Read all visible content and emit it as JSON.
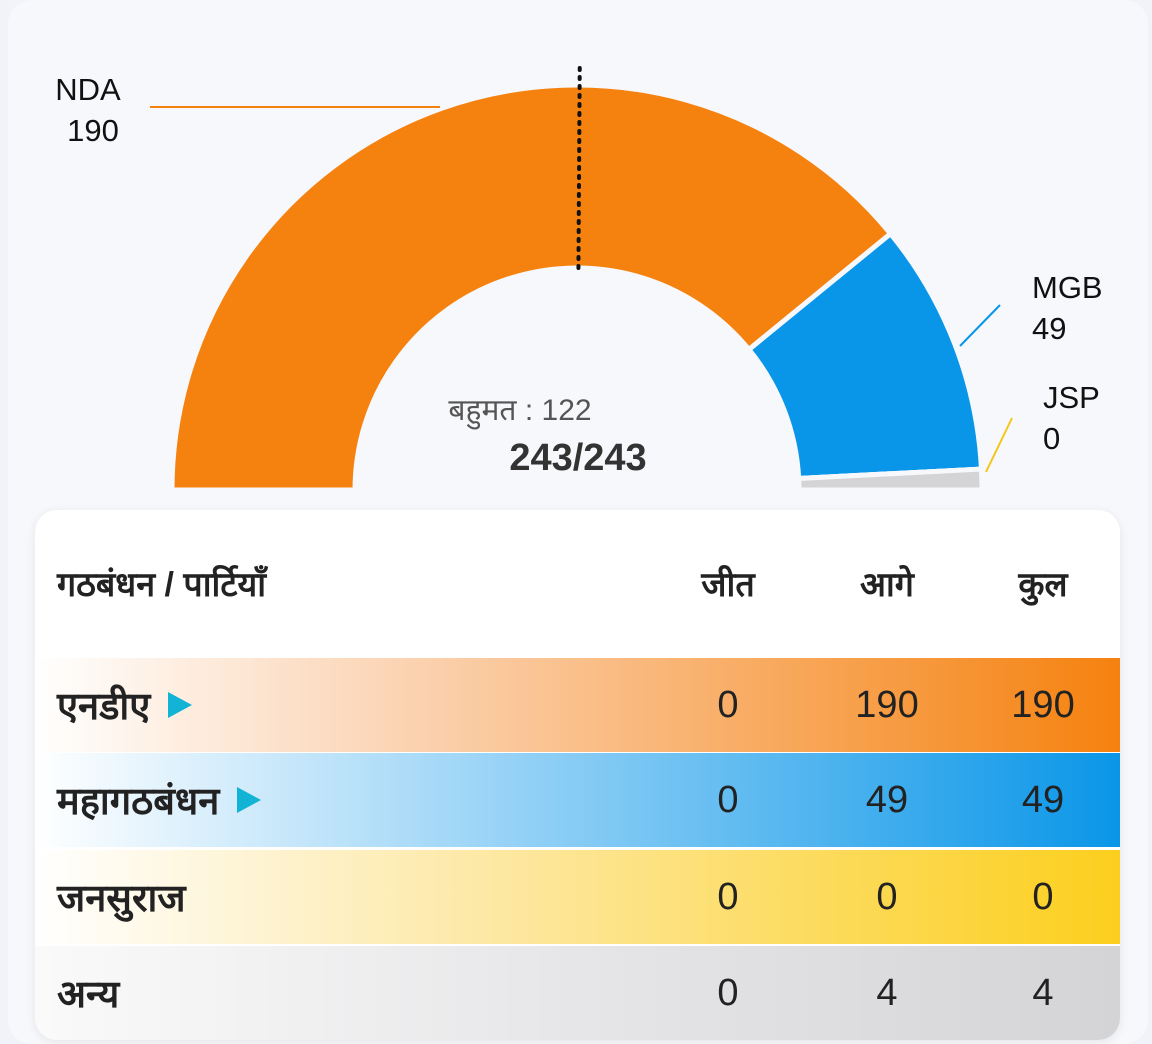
{
  "chart_data": {
    "type": "pie",
    "categories": [
      "NDA",
      "MGB",
      "JSP",
      null
    ],
    "values": [
      190,
      49,
      0,
      4
    ],
    "colors": [
      "#f5820f",
      "#0a96e8",
      "#f5c518",
      "#d4d4d6"
    ],
    "majority": {
      "value": 122,
      "label": "बहुमत : 122"
    },
    "total_label": "243/243"
  },
  "table": {
    "header": [
      "गठबंधन / पार्टियाँ",
      "जीत",
      "आगे",
      "कुल"
    ],
    "rows": [
      [
        "एनडीए",
        "0",
        "190",
        "190"
      ],
      [
        "महागठबंधन",
        "0",
        "49",
        "49"
      ],
      [
        "जनसुराज",
        "0",
        "0",
        "0"
      ],
      [
        "अन्य",
        "0",
        "4",
        "4"
      ]
    ]
  }
}
